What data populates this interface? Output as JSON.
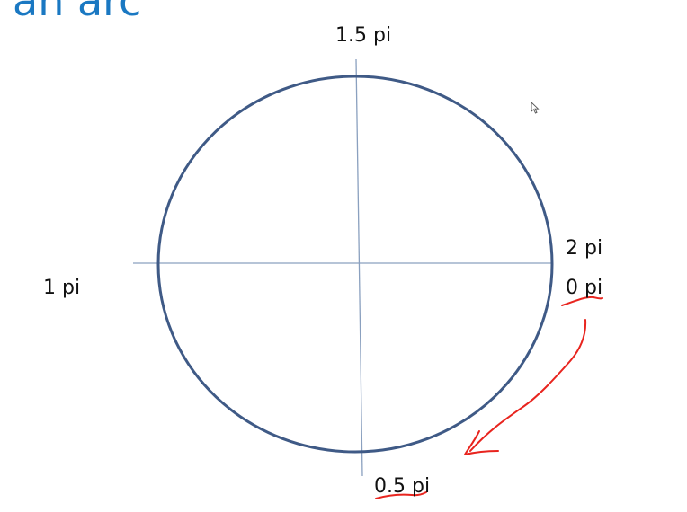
{
  "title": "an arc",
  "labels": {
    "top": "1.5 pi",
    "left": "1 pi",
    "right_upper": "2 pi",
    "right_lower": "0 pi",
    "bottom": "0.5 pi"
  },
  "colors": {
    "title": "#1a78c2",
    "circle": "#3f5a86",
    "axes": "#8aa0bf",
    "annotation": "#e8241e"
  },
  "icons": {
    "cursor": "mouse-pointer-icon",
    "annotation": "hand-drawn-arrow-icon"
  }
}
